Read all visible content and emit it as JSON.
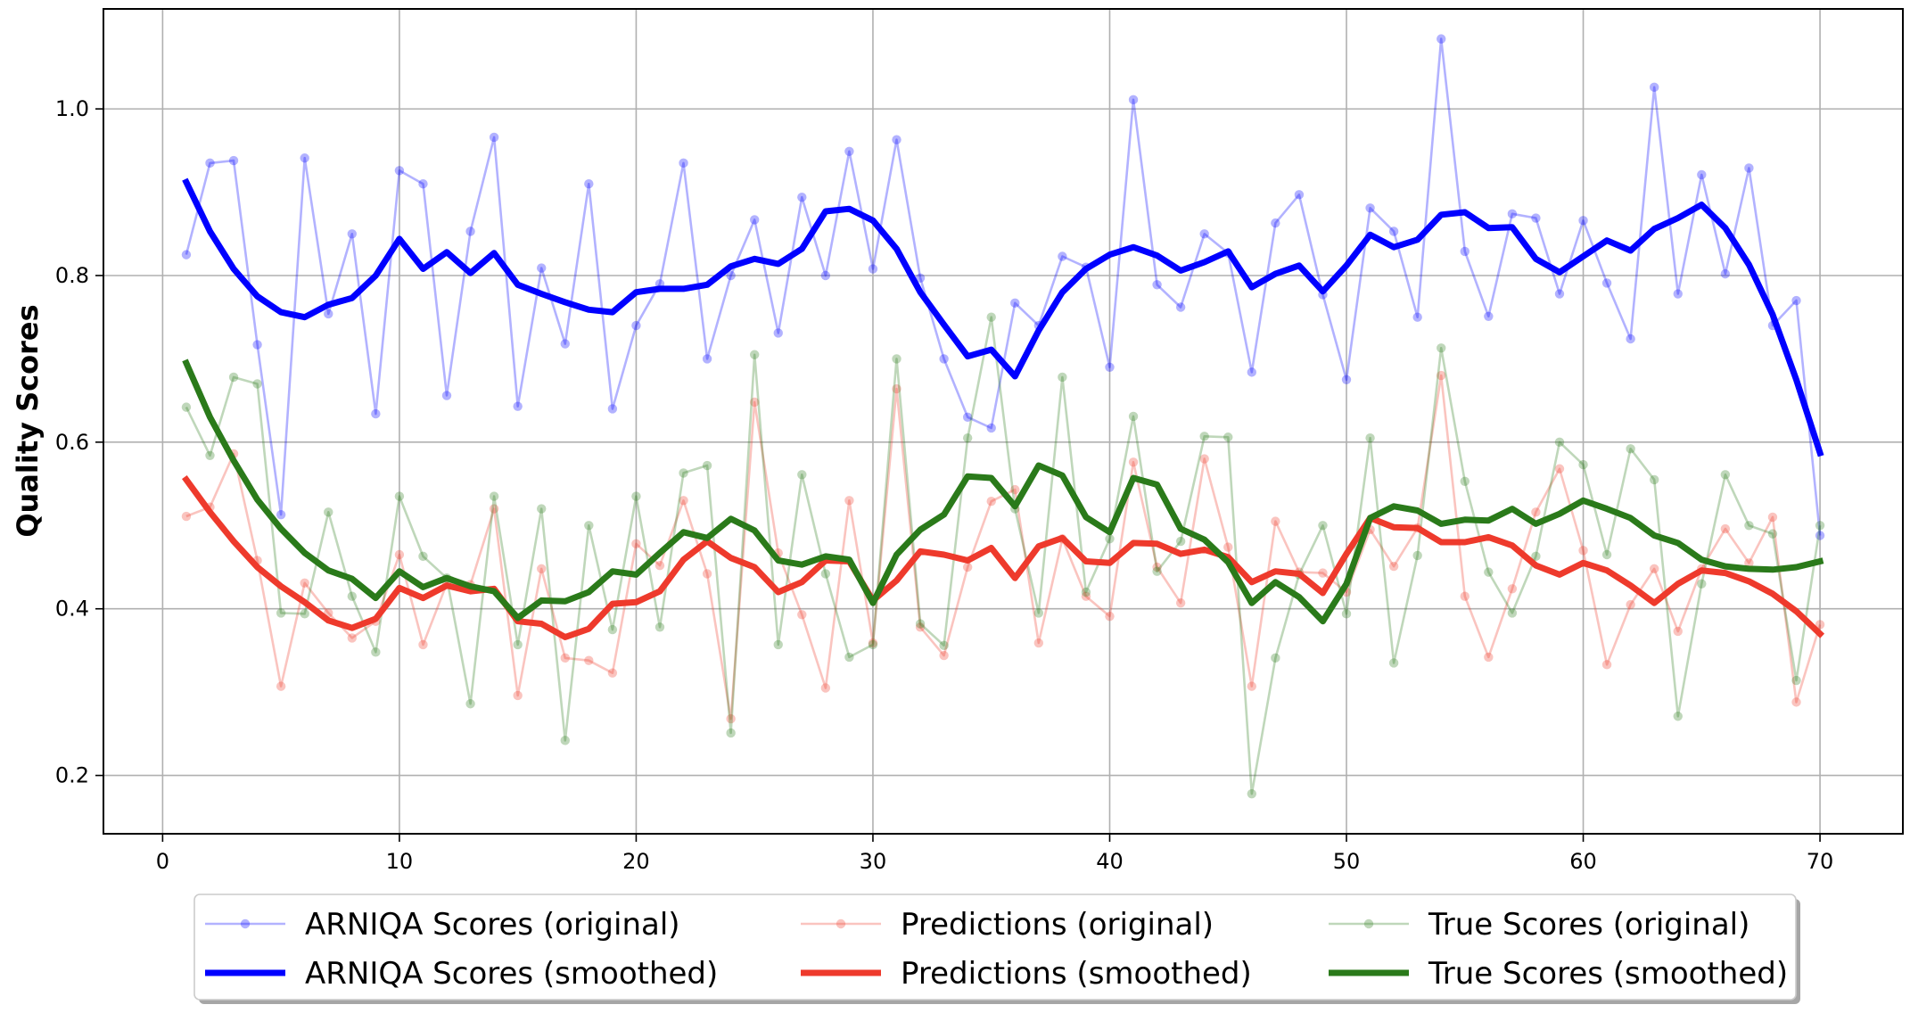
{
  "chart_data": {
    "type": "line",
    "title": "",
    "xlabel": "",
    "ylabel": "Quality Scores",
    "xlim": [
      -2.5,
      73.5
    ],
    "ylim": [
      0.13,
      1.12
    ],
    "xticks": [
      0,
      10,
      20,
      30,
      40,
      50,
      60,
      70
    ],
    "yticks": [
      0.2,
      0.4,
      0.6,
      0.8,
      1.0
    ],
    "xtick_labels": [
      "0",
      "10",
      "20",
      "30",
      "40",
      "50",
      "60",
      "70"
    ],
    "ytick_labels": [
      "0.2",
      "0.4",
      "0.6",
      "0.8",
      "1.0"
    ],
    "grid": true,
    "legend_position": "lower-center-outside",
    "x": [
      1,
      2,
      3,
      4,
      5,
      6,
      7,
      8,
      9,
      10,
      11,
      12,
      13,
      14,
      15,
      16,
      17,
      18,
      19,
      20,
      21,
      22,
      23,
      24,
      25,
      26,
      27,
      28,
      29,
      30,
      31,
      32,
      33,
      34,
      35,
      36,
      37,
      38,
      39,
      40,
      41,
      42,
      43,
      44,
      45,
      46,
      47,
      48,
      49,
      50,
      51,
      52,
      53,
      54,
      55,
      56,
      57,
      58,
      59,
      60,
      61,
      62,
      63,
      64,
      65,
      66,
      67,
      68,
      69,
      70
    ],
    "series": [
      {
        "name": "ARNIQA Scores (original)",
        "color": "#0000ff",
        "style": "original",
        "values": [
          0.825,
          0.935,
          0.938,
          0.717,
          0.513,
          0.941,
          0.754,
          0.85,
          0.634,
          0.926,
          0.91,
          0.656,
          0.853,
          0.966,
          0.643,
          0.809,
          0.718,
          0.91,
          0.64,
          0.74,
          0.79,
          0.935,
          0.7,
          0.8,
          0.867,
          0.731,
          0.894,
          0.8,
          0.949,
          0.808,
          0.963,
          0.797,
          0.7,
          0.63,
          0.617,
          0.767,
          0.74,
          0.823,
          0.81,
          0.69,
          1.011,
          0.789,
          0.762,
          0.85,
          0.827,
          0.684,
          0.863,
          0.897,
          0.777,
          0.675,
          0.881,
          0.853,
          0.75,
          1.084,
          0.829,
          0.751,
          0.874,
          0.869,
          0.778,
          0.866,
          0.791,
          0.724,
          1.026,
          0.778,
          0.921,
          0.802,
          0.929,
          0.74,
          0.77,
          0.488
        ]
      },
      {
        "name": "Predictions (original)",
        "color": "#ee3a2c",
        "style": "original",
        "values": [
          0.511,
          0.522,
          0.586,
          0.458,
          0.307,
          0.431,
          0.395,
          0.365,
          0.385,
          0.465,
          0.357,
          0.43,
          0.429,
          0.52,
          0.296,
          0.448,
          0.341,
          0.338,
          0.323,
          0.478,
          0.452,
          0.53,
          0.442,
          0.268,
          0.648,
          0.467,
          0.393,
          0.305,
          0.53,
          0.359,
          0.664,
          0.378,
          0.344,
          0.45,
          0.529,
          0.543,
          0.359,
          0.484,
          0.415,
          0.391,
          0.576,
          0.45,
          0.407,
          0.58,
          0.474,
          0.307,
          0.505,
          0.444,
          0.443,
          0.42,
          0.495,
          0.451,
          0.497,
          0.68,
          0.415,
          0.342,
          0.424,
          0.516,
          0.568,
          0.47,
          0.333,
          0.405,
          0.448,
          0.373,
          0.448,
          0.496,
          0.455,
          0.51,
          0.288,
          0.381
        ]
      },
      {
        "name": "True Scores (original)",
        "color": "#2a7a1a",
        "style": "original",
        "values": [
          0.642,
          0.584,
          0.678,
          0.67,
          0.395,
          0.394,
          0.516,
          0.415,
          0.348,
          0.535,
          0.463,
          0.437,
          0.286,
          0.535,
          0.357,
          0.52,
          0.242,
          0.5,
          0.375,
          0.535,
          0.378,
          0.563,
          0.572,
          0.251,
          0.705,
          0.357,
          0.561,
          0.442,
          0.342,
          0.357,
          0.7,
          0.382,
          0.356,
          0.605,
          0.75,
          0.52,
          0.395,
          0.678,
          0.42,
          0.484,
          0.631,
          0.445,
          0.481,
          0.607,
          0.606,
          0.178,
          0.341,
          0.441,
          0.5,
          0.394,
          0.605,
          0.335,
          0.464,
          0.713,
          0.553,
          0.444,
          0.395,
          0.463,
          0.6,
          0.573,
          0.465,
          0.592,
          0.555,
          0.271,
          0.43,
          0.561,
          0.5,
          0.49,
          0.314,
          0.5
        ]
      },
      {
        "name": "ARNIQA Scores (smoothed)",
        "color": "#0000ff",
        "style": "smoothed",
        "values": [
          0.912,
          0.853,
          0.808,
          0.775,
          0.756,
          0.75,
          0.765,
          0.773,
          0.8,
          0.844,
          0.808,
          0.828,
          0.803,
          0.827,
          0.789,
          0.778,
          0.768,
          0.759,
          0.756,
          0.78,
          0.784,
          0.784,
          0.789,
          0.811,
          0.82,
          0.814,
          0.832,
          0.877,
          0.88,
          0.866,
          0.832,
          0.78,
          0.741,
          0.703,
          0.711,
          0.679,
          0.734,
          0.78,
          0.808,
          0.825,
          0.834,
          0.824,
          0.806,
          0.816,
          0.829,
          0.786,
          0.802,
          0.812,
          0.781,
          0.812,
          0.849,
          0.834,
          0.843,
          0.873,
          0.876,
          0.857,
          0.858,
          0.82,
          0.804,
          0.823,
          0.842,
          0.83,
          0.856,
          0.869,
          0.885,
          0.857,
          0.813,
          0.753,
          0.675,
          0.587
        ]
      },
      {
        "name": "Predictions (smoothed)",
        "color": "#ee3a2c",
        "style": "smoothed",
        "values": [
          0.555,
          0.516,
          0.481,
          0.45,
          0.427,
          0.408,
          0.386,
          0.377,
          0.388,
          0.425,
          0.413,
          0.428,
          0.421,
          0.424,
          0.385,
          0.382,
          0.366,
          0.376,
          0.406,
          0.408,
          0.421,
          0.459,
          0.481,
          0.461,
          0.45,
          0.42,
          0.432,
          0.458,
          0.457,
          0.41,
          0.434,
          0.469,
          0.465,
          0.458,
          0.473,
          0.437,
          0.475,
          0.485,
          0.457,
          0.455,
          0.479,
          0.478,
          0.466,
          0.471,
          0.462,
          0.432,
          0.445,
          0.442,
          0.419,
          0.466,
          0.509,
          0.498,
          0.497,
          0.48,
          0.48,
          0.486,
          0.476,
          0.452,
          0.441,
          0.455,
          0.446,
          0.428,
          0.407,
          0.43,
          0.446,
          0.443,
          0.433,
          0.418,
          0.397,
          0.37
        ]
      },
      {
        "name": "True Scores (smoothed)",
        "color": "#2a7a1a",
        "style": "smoothed",
        "values": [
          0.695,
          0.63,
          0.578,
          0.531,
          0.496,
          0.467,
          0.446,
          0.436,
          0.413,
          0.445,
          0.426,
          0.437,
          0.427,
          0.421,
          0.389,
          0.41,
          0.409,
          0.42,
          0.445,
          0.441,
          0.467,
          0.492,
          0.485,
          0.508,
          0.494,
          0.458,
          0.453,
          0.463,
          0.459,
          0.407,
          0.465,
          0.495,
          0.513,
          0.559,
          0.557,
          0.523,
          0.572,
          0.56,
          0.51,
          0.492,
          0.557,
          0.549,
          0.496,
          0.483,
          0.456,
          0.407,
          0.432,
          0.414,
          0.385,
          0.43,
          0.509,
          0.523,
          0.518,
          0.502,
          0.507,
          0.506,
          0.52,
          0.502,
          0.514,
          0.53,
          0.52,
          0.509,
          0.488,
          0.479,
          0.459,
          0.451,
          0.448,
          0.447,
          0.45,
          0.457
        ]
      }
    ],
    "legend": [
      [
        "ARNIQA Scores (original)",
        "Predictions (original)",
        "True Scores (original)"
      ],
      [
        "ARNIQA Scores (smoothed)",
        "Predictions (smoothed)",
        "True Scores (smoothed)"
      ]
    ]
  }
}
